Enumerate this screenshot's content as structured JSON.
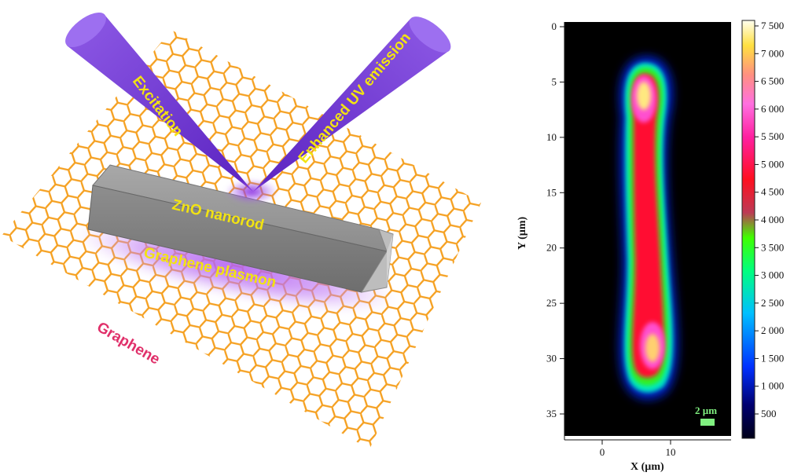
{
  "schematic": {
    "label_excitation": "Excitation",
    "label_emission": "Enhanced UV emission",
    "label_nanorod": "ZnO nanorod",
    "label_plasmon": "Graphene plasmon",
    "label_graphene": "Graphene",
    "colors": {
      "honeycomb": "#f5a020",
      "beam": "#7a3fd6",
      "glow": "#b05cf0",
      "rod_top": "#9a9a9a",
      "rod_front": "#858585",
      "rod_end": "#b4b4b4",
      "text_yellow": "#f2e312",
      "text_pink": "#e0306a"
    }
  },
  "map": {
    "y_axis_label": "Y (µm)",
    "x_axis_label": "X (µm)",
    "y_ticks": [
      "0",
      "5",
      "10",
      "15",
      "20",
      "25",
      "30",
      "35"
    ],
    "x_ticks": [
      "0",
      "10"
    ],
    "scale_bar_label": "2 µm",
    "colorbar_ticks": [
      "7 500",
      "7 000",
      "6 500",
      "6 000",
      "5 500",
      "5 000",
      "4 500",
      "4 000",
      "3 500",
      "3 000",
      "2 500",
      "2 000",
      "1 500",
      "1 000",
      "500"
    ]
  }
}
